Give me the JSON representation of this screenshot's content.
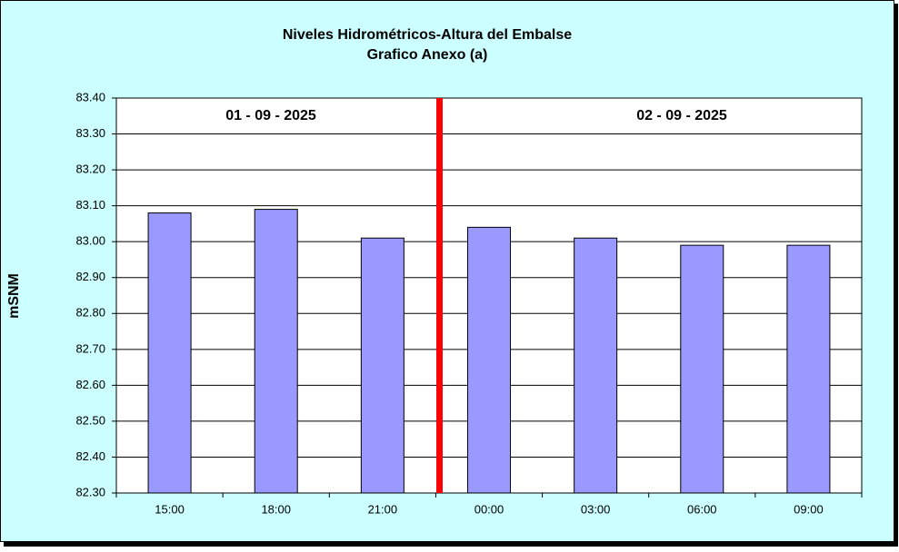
{
  "chart_data": {
    "type": "bar",
    "title": "Niveles Hidrométricos-Altura del Embalse",
    "subtitle": "Grafico Anexo (a)",
    "y_label": "mSNM",
    "annotations": [
      "01 - 09 - 2025",
      "02 - 09 - 2025"
    ],
    "categories": [
      "15:00",
      "18:00",
      "21:00",
      "00:00",
      "03:00",
      "06:00",
      "09:00"
    ],
    "values": [
      83.08,
      83.09,
      83.01,
      83.04,
      83.01,
      82.99,
      82.99
    ],
    "color": "#9999ff",
    "ylim": [
      82.3,
      83.4
    ],
    "yticks": [
      {
        "value": 82.3,
        "label": "82.30"
      },
      {
        "value": 82.4,
        "label": "82.40"
      },
      {
        "value": 82.5,
        "label": "82.50"
      },
      {
        "value": 82.6,
        "label": "82.60"
      },
      {
        "value": 82.7,
        "label": "82.70"
      },
      {
        "value": 82.8,
        "label": "82.80"
      },
      {
        "value": 82.9,
        "label": "82.90"
      },
      {
        "value": 83.0,
        "label": "83.00"
      },
      {
        "value": 83.1,
        "label": "83.10"
      },
      {
        "value": 83.2,
        "label": "83.20"
      },
      {
        "value": 83.3,
        "label": "83.30"
      },
      {
        "value": 83.4,
        "label": "83.40"
      }
    ],
    "grid": true
  }
}
